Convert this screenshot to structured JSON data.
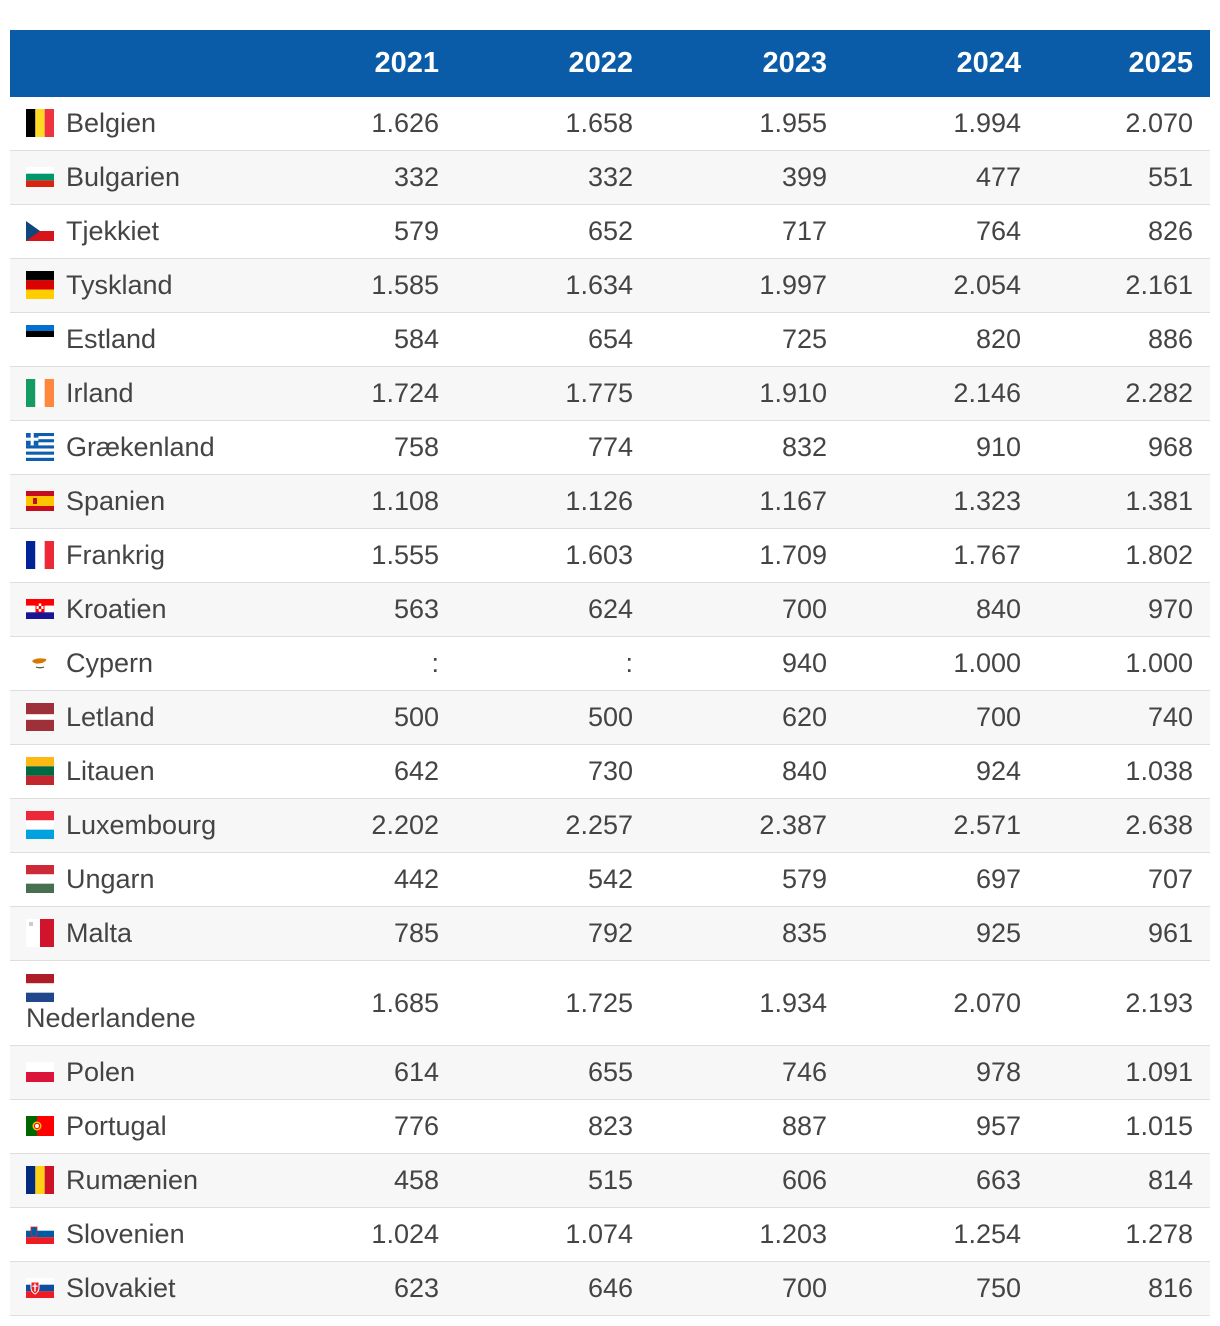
{
  "chart_data": {
    "type": "table",
    "title": "",
    "columns": [
      "",
      "2021",
      "2022",
      "2023",
      "2024",
      "2025"
    ],
    "rows": [
      {
        "country": "Belgien",
        "flag": "be-flag",
        "values": [
          "1.626",
          "1.658",
          "1.955",
          "1.994",
          "2.070"
        ]
      },
      {
        "country": "Bulgarien",
        "flag": "bg-flag",
        "values": [
          "332",
          "332",
          "399",
          "477",
          "551"
        ]
      },
      {
        "country": "Tjekkiet",
        "flag": "cz-flag",
        "values": [
          "579",
          "652",
          "717",
          "764",
          "826"
        ]
      },
      {
        "country": "Tyskland",
        "flag": "de-flag",
        "values": [
          "1.585",
          "1.634",
          "1.997",
          "2.054",
          "2.161"
        ]
      },
      {
        "country": "Estland",
        "flag": "ee-flag",
        "values": [
          "584",
          "654",
          "725",
          "820",
          "886"
        ]
      },
      {
        "country": "Irland",
        "flag": "ie-flag",
        "values": [
          "1.724",
          "1.775",
          "1.910",
          "2.146",
          "2.282"
        ]
      },
      {
        "country": "Grækenland",
        "flag": "gr-flag",
        "values": [
          "758",
          "774",
          "832",
          "910",
          "968"
        ]
      },
      {
        "country": "Spanien",
        "flag": "es-flag",
        "values": [
          "1.108",
          "1.126",
          "1.167",
          "1.323",
          "1.381"
        ]
      },
      {
        "country": "Frankrig",
        "flag": "fr-flag",
        "values": [
          "1.555",
          "1.603",
          "1.709",
          "1.767",
          "1.802"
        ]
      },
      {
        "country": "Kroatien",
        "flag": "hr-flag",
        "values": [
          "563",
          "624",
          "700",
          "840",
          "970"
        ]
      },
      {
        "country": "Cypern",
        "flag": "cy-flag",
        "values": [
          ":",
          ":",
          "940",
          "1.000",
          "1.000"
        ]
      },
      {
        "country": "Letland",
        "flag": "lv-flag",
        "values": [
          "500",
          "500",
          "620",
          "700",
          "740"
        ]
      },
      {
        "country": "Litauen",
        "flag": "lt-flag",
        "values": [
          "642",
          "730",
          "840",
          "924",
          "1.038"
        ]
      },
      {
        "country": "Luxembourg",
        "flag": "lu-flag",
        "values": [
          "2.202",
          "2.257",
          "2.387",
          "2.571",
          "2.638"
        ]
      },
      {
        "country": "Ungarn",
        "flag": "hu-flag",
        "values": [
          "442",
          "542",
          "579",
          "697",
          "707"
        ]
      },
      {
        "country": "Malta",
        "flag": "mt-flag",
        "values": [
          "785",
          "792",
          "835",
          "925",
          "961"
        ]
      },
      {
        "country": "Nederlandene",
        "flag": "nl-flag",
        "values": [
          "1.685",
          "1.725",
          "1.934",
          "2.070",
          "2.193"
        ]
      },
      {
        "country": "Polen",
        "flag": "pl-flag",
        "values": [
          "614",
          "655",
          "746",
          "978",
          "1.091"
        ]
      },
      {
        "country": "Portugal",
        "flag": "pt-flag",
        "values": [
          "776",
          "823",
          "887",
          "957",
          "1.015"
        ]
      },
      {
        "country": "Rumænien",
        "flag": "ro-flag",
        "values": [
          "458",
          "515",
          "606",
          "663",
          "814"
        ]
      },
      {
        "country": "Slovenien",
        "flag": "si-flag",
        "values": [
          "1.024",
          "1.074",
          "1.203",
          "1.254",
          "1.278"
        ]
      },
      {
        "country": "Slovakiet",
        "flag": "sk-flag",
        "values": [
          "623",
          "646",
          "700",
          "750",
          "816"
        ]
      }
    ]
  },
  "colors": {
    "header_bg": "#0b5ca8",
    "header_text": "#ffffff",
    "row_alt": "#f7f7f7",
    "border": "#dedede"
  }
}
